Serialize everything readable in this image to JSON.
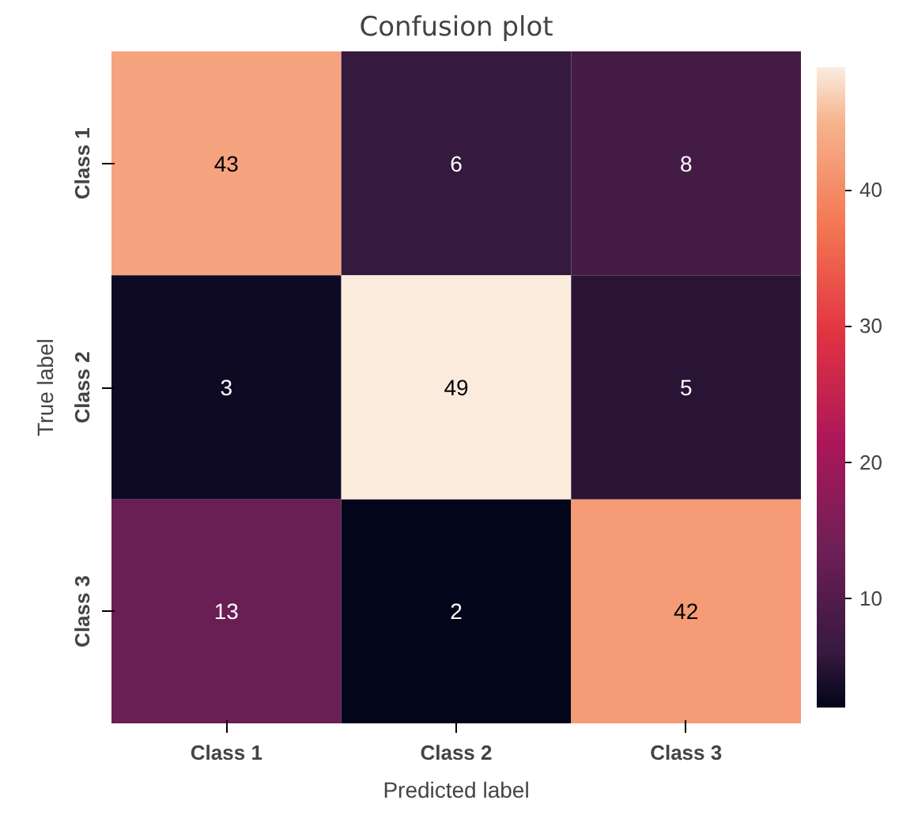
{
  "chart_data": {
    "type": "heatmap",
    "title": "Confusion plot",
    "xlabel": "Predicted label",
    "ylabel": "True label",
    "categories": [
      "Class 1",
      "Class 2",
      "Class 3"
    ],
    "y_categories": [
      "Class 1",
      "Class 2",
      "Class 3"
    ],
    "cells": [
      [
        43,
        6,
        8
      ],
      [
        3,
        49,
        5
      ],
      [
        13,
        2,
        42
      ]
    ],
    "clim": [
      2,
      49
    ],
    "cticks": [
      10,
      20,
      30,
      40
    ],
    "data_labels": true
  }
}
